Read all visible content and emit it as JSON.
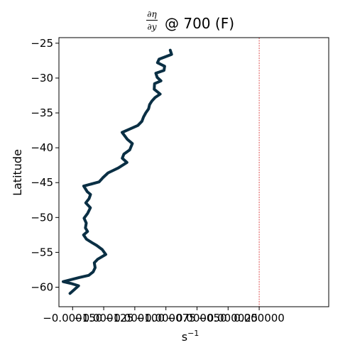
{
  "chart_data": {
    "type": "line",
    "title_frac_top": "∂η",
    "title_frac_bottom": "∂y",
    "title_rest": "@ 700 (F)",
    "xlabel_base": "s",
    "xlabel_exp": "−1",
    "ylabel": "Latitude",
    "xlim": [
      -0.000161,
      5.59e-05
    ],
    "ylim": [
      -62.8,
      -24.2
    ],
    "grid": false,
    "x_ticks": [
      -0.00015,
      -0.000125,
      -0.0001,
      -7.5e-05,
      -5e-05,
      -2.5e-05,
      0.0
    ],
    "x_tick_labels": [
      "−0.000150",
      "−0.000125",
      "−0.000100",
      "−0.000075",
      "−0.000050",
      "−0.000025",
      "0.000000"
    ],
    "y_ticks": [
      -25,
      -30,
      -35,
      -40,
      -45,
      -50,
      -55,
      -60
    ],
    "y_tick_labels": [
      "−25",
      "−30",
      "−35",
      "−40",
      "−45",
      "−50",
      "−55",
      "−60"
    ],
    "reference_line": {
      "x": 0.0,
      "color": "#d62728",
      "style": "dashed"
    },
    "series": [
      {
        "color": "#0a2f44",
        "points": [
          [
            -7.15e-05,
            -26.0
          ],
          [
            -7.04e-05,
            -26.6
          ],
          [
            -8.05e-05,
            -27.3
          ],
          [
            -8.18e-05,
            -27.8
          ],
          [
            -7.6e-05,
            -28.3
          ],
          [
            -7.65e-05,
            -28.9
          ],
          [
            -8.31e-05,
            -29.3
          ],
          [
            -8.2e-05,
            -29.9
          ],
          [
            -7.9e-05,
            -30.4
          ],
          [
            -8.41e-05,
            -30.8
          ],
          [
            -8.44e-05,
            -31.6
          ],
          [
            -7.96e-05,
            -32.3
          ],
          [
            -8.37e-05,
            -32.8
          ],
          [
            -8.63e-05,
            -33.3
          ],
          [
            -8.81e-05,
            -33.8
          ],
          [
            -8.89e-05,
            -34.4
          ],
          [
            -9.12e-05,
            -35.0
          ],
          [
            -9.3e-05,
            -35.6
          ],
          [
            -9.43e-05,
            -36.2
          ],
          [
            -9.75e-05,
            -36.8
          ],
          [
            -0.0001038,
            -37.3
          ],
          [
            -0.0001102,
            -37.8
          ],
          [
            -0.0001059,
            -38.8
          ],
          [
            -0.000102,
            -39.4
          ],
          [
            -0.0001041,
            -40.3
          ],
          [
            -0.0001088,
            -40.9
          ],
          [
            -0.0001101,
            -41.5
          ],
          [
            -0.0001063,
            -42.1
          ],
          [
            -0.0001133,
            -42.9
          ],
          [
            -0.0001215,
            -43.6
          ],
          [
            -0.0001257,
            -44.3
          ],
          [
            -0.0001287,
            -44.9
          ],
          [
            -0.0001411,
            -45.5
          ],
          [
            -0.0001382,
            -46.3
          ],
          [
            -0.0001356,
            -46.7
          ],
          [
            -0.0001368,
            -47.3
          ],
          [
            -0.0001394,
            -47.9
          ],
          [
            -0.0001357,
            -48.6
          ],
          [
            -0.0001379,
            -49.4
          ],
          [
            -0.0001408,
            -50.1
          ],
          [
            -0.000139,
            -50.8
          ],
          [
            -0.0001397,
            -51.5
          ],
          [
            -0.000138,
            -52.0
          ],
          [
            -0.0001412,
            -52.5
          ],
          [
            -0.0001389,
            -53.1
          ],
          [
            -0.0001345,
            -53.6
          ],
          [
            -0.0001307,
            -54.0
          ],
          [
            -0.0001262,
            -54.6
          ],
          [
            -0.0001233,
            -55.3
          ],
          [
            -0.0001299,
            -56.0
          ],
          [
            -0.0001326,
            -56.5
          ],
          [
            -0.0001319,
            -57.2
          ],
          [
            -0.0001335,
            -57.8
          ],
          [
            -0.000137,
            -58.3
          ],
          [
            -0.0001445,
            -58.6
          ],
          [
            -0.0001576,
            -59.2
          ],
          [
            -0.0001505,
            -59.5
          ],
          [
            -0.0001452,
            -59.8
          ],
          [
            -0.0001484,
            -60.3
          ],
          [
            -0.0001521,
            -60.9
          ]
        ]
      }
    ]
  }
}
